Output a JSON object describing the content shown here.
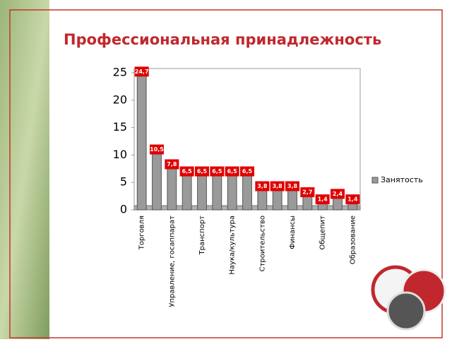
{
  "chart_data": {
    "type": "bar",
    "title": "Профессиональная принадлежность",
    "categories": [
      "Торговля",
      null,
      "Управление, госаппарат",
      null,
      "Транспорт",
      null,
      "Наука/культура",
      null,
      "Строительство",
      null,
      "Финансы",
      null,
      "Общепит",
      null,
      "Образование"
    ],
    "series": [
      {
        "name": "Занятость",
        "color": "#9a9a9a",
        "values": [
          24.7,
          10.5,
          7.8,
          6.5,
          6.5,
          6.5,
          6.5,
          6.5,
          3.8,
          3.8,
          3.8,
          2.7,
          1.4,
          2.4,
          1.4
        ],
        "value_labels": [
          "24,7",
          "10,5",
          "7,8",
          "6,5",
          "6,5",
          "6,5",
          "6,5",
          "6,5",
          "3,8",
          "3,8",
          "3,8",
          "2,7",
          "1,4",
          "2,4",
          "1,4"
        ]
      }
    ],
    "ylim": [
      0,
      25
    ],
    "yticks": [
      0,
      5,
      10,
      15,
      20,
      25
    ],
    "grid": false,
    "legend": "right"
  }
}
